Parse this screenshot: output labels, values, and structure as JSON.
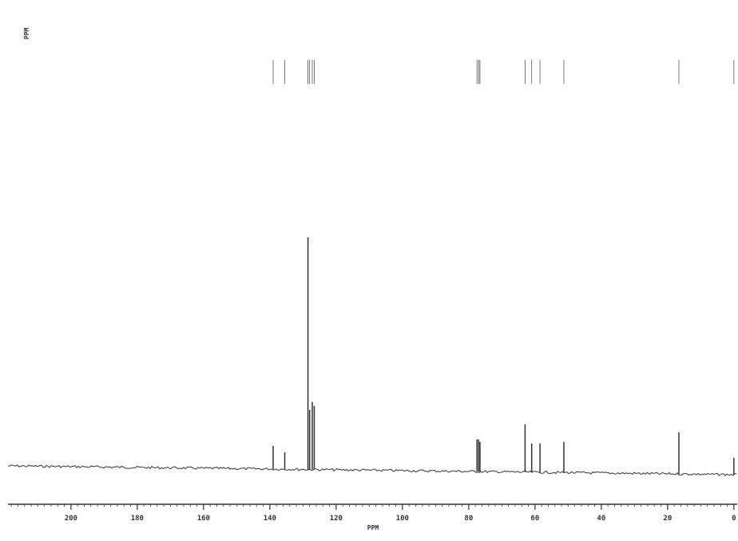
{
  "chart_data": {
    "type": "spectrum",
    "y_label_corner": "PPM",
    "x_label": "PPM",
    "xlim": [
      219,
      -1
    ],
    "xticks": [
      200,
      180,
      160,
      140,
      120,
      100,
      80,
      60,
      40,
      20,
      0
    ],
    "ylim": [
      0,
      300
    ],
    "color": "#333333",
    "peaks": {
      "x": [
        139,
        135.5,
        128.5,
        128,
        127.2,
        126.6,
        77.5,
        77,
        76.6,
        63,
        61,
        58.5,
        51.3,
        16.6,
        0
      ],
      "values": [
        25,
        17,
        286,
        70,
        80,
        75,
        33,
        33,
        30,
        52,
        28,
        28,
        30,
        42,
        10
      ]
    }
  }
}
